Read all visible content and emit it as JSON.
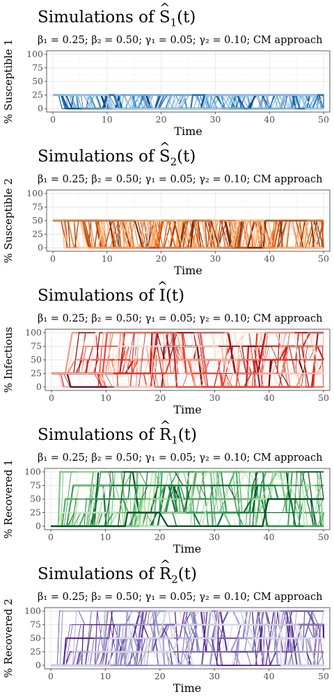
{
  "chart_data": [
    {
      "type": "line",
      "title": "Simulations of Ŝ₁(t)",
      "title_pre": "Simulations of ",
      "title_var": "S",
      "title_sub": "1",
      "title_post": "(t)",
      "subtitle": "β₁ = 0.25; β₂ = 0.50; γ₁ = 0.05; γ₂ = 0.10; CM approach",
      "xlabel": "Time",
      "ylabel": "% Susceptible 1",
      "xlim": [
        0,
        50
      ],
      "ylim": [
        0,
        100
      ],
      "x_ticks": [
        0,
        10,
        20,
        30,
        40,
        50
      ],
      "y_ticks": [
        0,
        25,
        50,
        75,
        100
      ],
      "grid": true,
      "palette": "blues",
      "colors": [
        "#08306b",
        "#08519c",
        "#2171b5",
        "#4292c6",
        "#6baed6",
        "#9ecae1",
        "#c6dbef"
      ],
      "levels": [
        0,
        25
      ],
      "start_level": 25,
      "seed": 11
    },
    {
      "type": "line",
      "title": "Simulations of Ŝ₂(t)",
      "title_pre": "Simulations of ",
      "title_var": "S",
      "title_sub": "2",
      "title_post": "(t)",
      "subtitle": "β₁ = 0.25; β₂ = 0.50; γ₁ = 0.05; γ₂ = 0.10; CM approach",
      "xlabel": "Time",
      "ylabel": "% Susceptible 2",
      "xlim": [
        0,
        50
      ],
      "ylim": [
        0,
        100
      ],
      "x_ticks": [
        0,
        10,
        20,
        30,
        40,
        50
      ],
      "y_ticks": [
        0,
        25,
        50,
        75,
        100
      ],
      "grid": true,
      "palette": "oranges",
      "colors": [
        "#7f2704",
        "#a63603",
        "#d94801",
        "#f16913",
        "#fd8d3c",
        "#fdae6b",
        "#fdd0a2"
      ],
      "levels": [
        0,
        50
      ],
      "start_level": 50,
      "seed": 23
    },
    {
      "type": "line",
      "title": "Simulations of Î(t)",
      "title_pre": "Simulations of ",
      "title_var": "I",
      "title_sub": "",
      "title_post": "(t)",
      "subtitle": "β₁ = 0.25; β₂ = 0.50; γ₁ = 0.05; γ₂ = 0.10; CM approach",
      "xlabel": "Time",
      "ylabel": "% Infectious",
      "xlim": [
        0,
        50
      ],
      "ylim": [
        0,
        100
      ],
      "x_ticks": [
        0,
        10,
        20,
        30,
        40,
        50
      ],
      "y_ticks": [
        0,
        25,
        50,
        75,
        100
      ],
      "grid": true,
      "palette": "reds",
      "colors": [
        "#67000d",
        "#a50f15",
        "#cb181d",
        "#ef3b2c",
        "#fb6a4a",
        "#fc9272",
        "#fcbba1",
        "#fee0d2"
      ],
      "levels": [
        0,
        25,
        50,
        75,
        100
      ],
      "start_level": 25,
      "seed": 37
    },
    {
      "type": "line",
      "title": "Simulations of R̂₁(t)",
      "title_pre": "Simulations of ",
      "title_var": "R",
      "title_sub": "1",
      "title_post": "(t)",
      "subtitle": "β₁ = 0.25; β₂ = 0.50; γ₁ = 0.05; γ₂ = 0.10; CM approach",
      "xlabel": "Time",
      "ylabel": "% Recovered 1",
      "xlim": [
        0,
        50
      ],
      "ylim": [
        0,
        100
      ],
      "x_ticks": [
        0,
        10,
        20,
        30,
        40,
        50
      ],
      "y_ticks": [
        0,
        25,
        50,
        75,
        100
      ],
      "grid": true,
      "palette": "greens",
      "colors": [
        "#00441b",
        "#006d2c",
        "#238b45",
        "#41ab5d",
        "#74c476",
        "#a1d99b",
        "#c7e9c0"
      ],
      "levels": [
        0,
        25,
        50,
        75,
        100
      ],
      "start_level": 0,
      "seed": 53
    },
    {
      "type": "line",
      "title": "Simulations of R̂₂(t)",
      "title_pre": "Simulations of ",
      "title_var": "R",
      "title_sub": "2",
      "title_post": "(t)",
      "subtitle": "β₁ = 0.25; β₂ = 0.50; γ₁ = 0.05; γ₂ = 0.10; CM approach",
      "xlabel": "Time",
      "ylabel": "% Recovered 2",
      "xlim": [
        0,
        50
      ],
      "ylim": [
        0,
        100
      ],
      "x_ticks": [
        0,
        10,
        20,
        30,
        40,
        50
      ],
      "y_ticks": [
        0,
        25,
        50,
        75,
        100
      ],
      "grid": true,
      "palette": "purples",
      "colors": [
        "#3f007d",
        "#54278f",
        "#6a51a3",
        "#807dba",
        "#9e9ac8",
        "#bcbddc",
        "#dadaeb"
      ],
      "levels": [
        0,
        25,
        50,
        75,
        100
      ],
      "start_level": 0,
      "seed": 71
    }
  ]
}
